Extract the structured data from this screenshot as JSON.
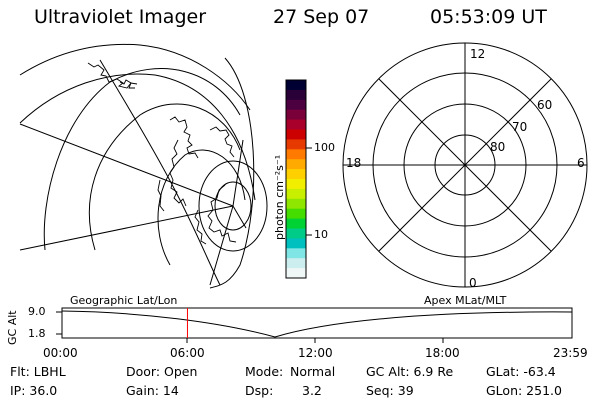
{
  "header": {
    "instrument": "Ultraviolet Imager",
    "date": "27 Sep 07",
    "time": "05:53:09 UT"
  },
  "colorbar": {
    "unit_label": "photon cm⁻²s⁻¹",
    "ticks": [
      "100",
      "10"
    ]
  },
  "polar_plot": {
    "mlt_labels": [
      "12",
      "18",
      "6",
      "0"
    ],
    "lat_labels": [
      "60",
      "70",
      "80"
    ]
  },
  "timeline": {
    "left_label": "Geographic Lat/Lon",
    "right_label": "Apex MLat/MLT",
    "y_axis_title": "GC Alt",
    "y_ticks": [
      "9.0",
      "1.8"
    ],
    "x_ticks": [
      "00:00",
      "06:00",
      "12:00",
      "18:00",
      "23:59"
    ],
    "current_time_fraction": 0.246
  },
  "status": {
    "flt": "Flt: LBHL",
    "door": "Door: Open",
    "mode_label": "Mode:",
    "mode_value": "Normal",
    "gc_alt": "GC Alt: 6.9 Re",
    "glat": "GLat: -63.4",
    "ip": "IP: 36.0",
    "gain": "Gain: 14",
    "dsp_label": "Dsp:",
    "dsp_value": "3.2",
    "seq": "Seq: 39",
    "glon": "GLon: 251.0"
  }
}
